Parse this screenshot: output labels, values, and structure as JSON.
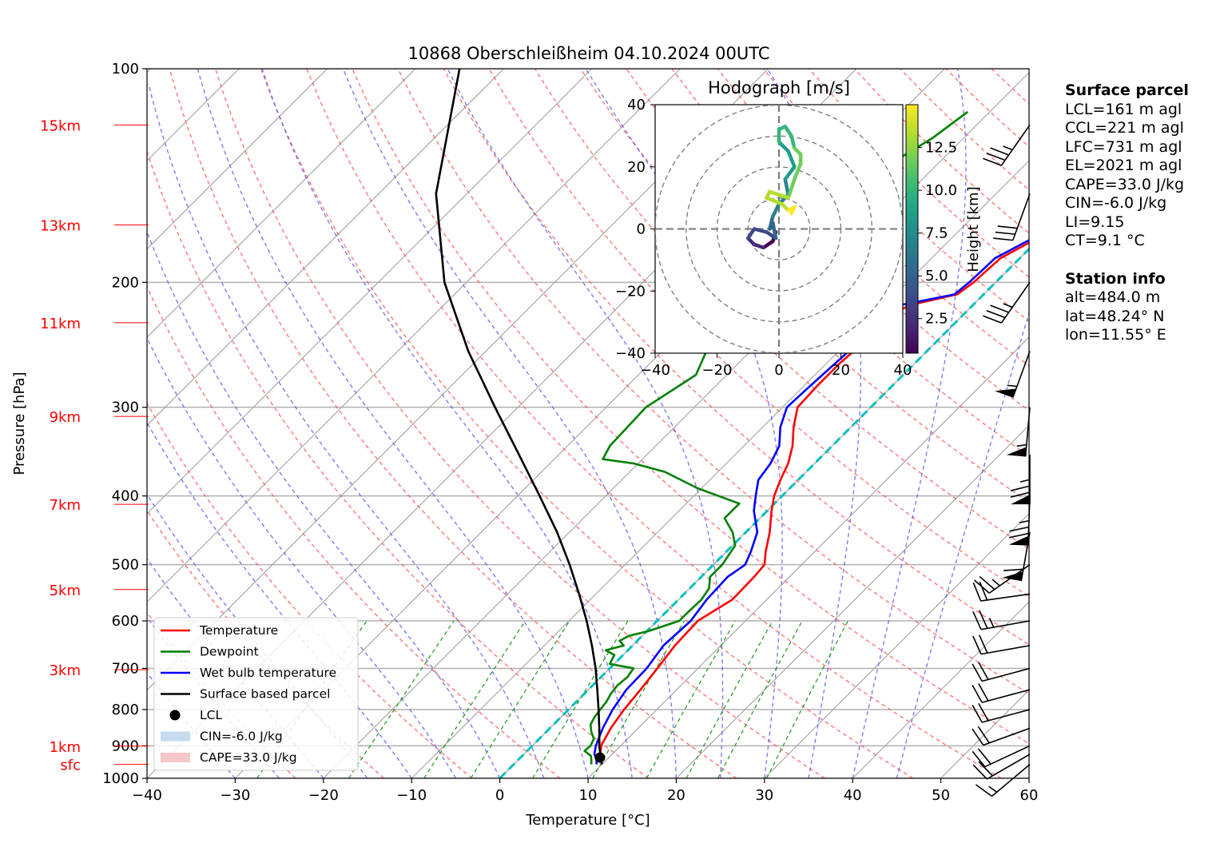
{
  "chart_data": {
    "type": "line",
    "title": "10868 Oberschleißheim 04.10.2024 00UTC",
    "xlabel": "Temperature [°C]",
    "ylabel": "Pressure [hPa]",
    "xlim": [
      -40,
      60
    ],
    "ylim": [
      1000,
      100
    ],
    "y_scale": "log",
    "x_ticks": [
      "−40",
      "−30",
      "−20",
      "−10",
      "0",
      "10",
      "20",
      "30",
      "40",
      "50",
      "60"
    ],
    "y_ticks": [
      {
        "p": 1000,
        "label": "1000"
      },
      {
        "p": 900,
        "label": "900"
      },
      {
        "p": 800,
        "label": "800"
      },
      {
        "p": 700,
        "label": "700"
      },
      {
        "p": 600,
        "label": "600"
      },
      {
        "p": 500,
        "label": "500"
      },
      {
        "p": 400,
        "label": "400"
      },
      {
        "p": 300,
        "label": "300"
      },
      {
        "p": 200,
        "label": "200"
      },
      {
        "p": 100,
        "label": "100"
      }
    ],
    "height_labels": [
      {
        "p": 956,
        "label": "sfc"
      },
      {
        "p": 901,
        "label": "1km"
      },
      {
        "p": 703,
        "label": "3km"
      },
      {
        "p": 542,
        "label": "5km"
      },
      {
        "p": 411,
        "label": "7km"
      },
      {
        "p": 309,
        "label": "9km"
      },
      {
        "p": 228,
        "label": "11km"
      },
      {
        "p": 166,
        "label": "13km"
      },
      {
        "p": 120,
        "label": "15km"
      }
    ],
    "legend_position": "lower-left",
    "legend": [
      {
        "label": "Temperature",
        "color": "#ff0000",
        "kind": "line"
      },
      {
        "label": "Dewpoint",
        "color": "#008000",
        "kind": "line"
      },
      {
        "label": "Wet bulb temperature",
        "color": "#0000ff",
        "kind": "line"
      },
      {
        "label": "Surface based parcel",
        "color": "#000000",
        "kind": "line"
      },
      {
        "label": "LCL",
        "color": "#000000",
        "kind": "dot"
      },
      {
        "label": "CIN=-6.0 J/kg",
        "color": "#c6dbef",
        "kind": "patch"
      },
      {
        "label": "CAPE=33.0 J/kg",
        "color": "#f4c7c9",
        "kind": "patch"
      }
    ],
    "series": [
      {
        "name": "Temperature",
        "color": "#ff0000",
        "points": [
          [
            956,
            10.0
          ],
          [
            940,
            9.3
          ],
          [
            925,
            8.7
          ],
          [
            900,
            7.8
          ],
          [
            850,
            6.9
          ],
          [
            800,
            6.3
          ],
          [
            750,
            5.9
          ],
          [
            700,
            5.4
          ],
          [
            650,
            4.8
          ],
          [
            600,
            4.6
          ],
          [
            560,
            6.1
          ],
          [
            520,
            6.0
          ],
          [
            500,
            5.8
          ],
          [
            480,
            4.5
          ],
          [
            450,
            2.7
          ],
          [
            420,
            0.5
          ],
          [
            400,
            -0.9
          ],
          [
            380,
            -2.0
          ],
          [
            360,
            -3.0
          ],
          [
            340,
            -4.5
          ],
          [
            320,
            -6.5
          ],
          [
            300,
            -8.3
          ],
          [
            280,
            -8.5
          ],
          [
            260,
            -8.5
          ],
          [
            240,
            -8.1
          ],
          [
            225,
            -8.8
          ],
          [
            215,
            -7.0
          ],
          [
            208,
            -3.0
          ],
          [
            200,
            -2.5
          ],
          [
            185,
            -2.2
          ],
          [
            170,
            0.3
          ],
          [
            160,
            1.8
          ],
          [
            150,
            2.5
          ],
          [
            140,
            3.7
          ],
          [
            130,
            5.5
          ],
          [
            122,
            5.7
          ],
          [
            115,
            6.0
          ]
        ]
      },
      {
        "name": "Dewpoint",
        "color": "#008000",
        "points": [
          [
            956,
            8.8
          ],
          [
            945,
            8.4
          ],
          [
            930,
            7.8
          ],
          [
            915,
            6.5
          ],
          [
            900,
            6.6
          ],
          [
            880,
            6.2
          ],
          [
            860,
            5.1
          ],
          [
            840,
            4.2
          ],
          [
            820,
            3.8
          ],
          [
            800,
            3.6
          ],
          [
            780,
            3.4
          ],
          [
            760,
            3.0
          ],
          [
            740,
            2.8
          ],
          [
            720,
            3.0
          ],
          [
            700,
            2.7
          ],
          [
            690,
            -0.5
          ],
          [
            670,
            -1.0
          ],
          [
            660,
            -2.5
          ],
          [
            650,
            -1.0
          ],
          [
            640,
            -2.0
          ],
          [
            630,
            -1.5
          ],
          [
            620,
            0.2
          ],
          [
            600,
            2.5
          ],
          [
            585,
            2.5
          ],
          [
            560,
            2.6
          ],
          [
            540,
            2.2
          ],
          [
            520,
            1.0
          ],
          [
            500,
            1.0
          ],
          [
            470,
            0.3
          ],
          [
            450,
            -1.5
          ],
          [
            430,
            -4.0
          ],
          [
            410,
            -4.0
          ],
          [
            390,
            -10.5
          ],
          [
            370,
            -16.0
          ],
          [
            360,
            -20.5
          ],
          [
            355,
            -24.5
          ],
          [
            340,
            -25.2
          ],
          [
            300,
            -25.5
          ],
          [
            270,
            -23.5
          ],
          [
            250,
            -25.0
          ],
          [
            230,
            -24.0
          ],
          [
            215,
            -24.5
          ],
          [
            205,
            -27.5
          ],
          [
            200,
            -32.0
          ],
          [
            195,
            -31.0
          ],
          [
            180,
            -30.3
          ],
          [
            160,
            -28.0
          ],
          [
            140,
            -26.0
          ],
          [
            125,
            -23.5
          ],
          [
            115,
            -22.5
          ]
        ]
      },
      {
        "name": "Wet bulb temperature",
        "color": "#0000ff",
        "points": [
          [
            956,
            9.4
          ],
          [
            940,
            8.8
          ],
          [
            925,
            8.0
          ],
          [
            900,
            7.2
          ],
          [
            850,
            6.0
          ],
          [
            800,
            5.0
          ],
          [
            750,
            4.3
          ],
          [
            700,
            4.2
          ],
          [
            650,
            3.5
          ],
          [
            600,
            3.8
          ],
          [
            560,
            3.2
          ],
          [
            520,
            3.0
          ],
          [
            500,
            3.6
          ],
          [
            480,
            2.8
          ],
          [
            450,
            1.3
          ],
          [
            420,
            -1.5
          ],
          [
            400,
            -3.0
          ],
          [
            380,
            -4.5
          ],
          [
            360,
            -5.0
          ],
          [
            340,
            -6.0
          ],
          [
            320,
            -8.0
          ],
          [
            300,
            -9.5
          ],
          [
            280,
            -9.3
          ],
          [
            260,
            -9.0
          ],
          [
            240,
            -8.7
          ],
          [
            225,
            -9.4
          ],
          [
            215,
            -8.0
          ],
          [
            208,
            -3.3
          ],
          [
            200,
            -3.0
          ],
          [
            185,
            -2.8
          ],
          [
            170,
            -0.2
          ],
          [
            160,
            1.3
          ],
          [
            150,
            2.0
          ],
          [
            140,
            3.2
          ],
          [
            130,
            5.0
          ],
          [
            122,
            5.2
          ],
          [
            115,
            5.5
          ]
        ]
      },
      {
        "name": "Surface based parcel",
        "color": "#000000",
        "points": [
          [
            956,
            10.0
          ],
          [
            935,
            9.1
          ],
          [
            900,
            7.6
          ],
          [
            850,
            5.6
          ],
          [
            800,
            3.4
          ],
          [
            750,
            1.0
          ],
          [
            700,
            -1.6
          ],
          [
            650,
            -4.6
          ],
          [
            600,
            -8.0
          ],
          [
            550,
            -11.9
          ],
          [
            500,
            -16.3
          ],
          [
            450,
            -21.4
          ],
          [
            400,
            -27.5
          ],
          [
            350,
            -34.5
          ],
          [
            300,
            -42.6
          ],
          [
            250,
            -52.0
          ],
          [
            200,
            -62.5
          ],
          [
            150,
            -73.5
          ],
          [
            100,
            -85.0
          ]
        ]
      }
    ],
    "lcl": {
      "p": 935,
      "t": 9.0
    },
    "freezing_level_line": {
      "color": "#00c0c0",
      "points": [
        [
          1000,
          0
        ],
        [
          100,
          0
        ]
      ]
    },
    "wind_barbs": [
      {
        "p": 956,
        "speed_kt": 15,
        "dir_deg": 230
      },
      {
        "p": 925,
        "speed_kt": 20,
        "dir_deg": 240
      },
      {
        "p": 900,
        "speed_kt": 20,
        "dir_deg": 245
      },
      {
        "p": 850,
        "speed_kt": 20,
        "dir_deg": 250
      },
      {
        "p": 800,
        "speed_kt": 20,
        "dir_deg": 255
      },
      {
        "p": 750,
        "speed_kt": 20,
        "dir_deg": 255
      },
      {
        "p": 700,
        "speed_kt": 20,
        "dir_deg": 255
      },
      {
        "p": 650,
        "speed_kt": 20,
        "dir_deg": 260
      },
      {
        "p": 600,
        "speed_kt": 25,
        "dir_deg": 260
      },
      {
        "p": 550,
        "speed_kt": 20,
        "dir_deg": 262
      },
      {
        "p": 500,
        "speed_kt": 25,
        "dir_deg": 235
      },
      {
        "p": 450,
        "speed_kt": 60,
        "dir_deg": 190
      },
      {
        "p": 400,
        "speed_kt": 75,
        "dir_deg": 182
      },
      {
        "p": 350,
        "speed_kt": 75,
        "dir_deg": 180
      },
      {
        "p": 300,
        "speed_kt": 55,
        "dir_deg": 185
      },
      {
        "p": 250,
        "speed_kt": 55,
        "dir_deg": 200
      },
      {
        "p": 200,
        "speed_kt": 35,
        "dir_deg": 215
      },
      {
        "p": 150,
        "speed_kt": 30,
        "dir_deg": 200
      },
      {
        "p": 120,
        "speed_kt": 35,
        "dir_deg": 215
      }
    ],
    "hodograph": {
      "title": "Hodograph [m/s]",
      "xlim": [
        -40,
        40
      ],
      "ylim": [
        -40,
        40
      ],
      "x_ticks": [
        "−40",
        "−20",
        "0",
        "20",
        "40"
      ],
      "y_ticks": [
        "40",
        "20",
        "0",
        "−20",
        "−40"
      ],
      "rings_ms": [
        10,
        20,
        30,
        40
      ],
      "colorbar_label": "Height [km]",
      "colorbar_ticks": [
        "2.5",
        "5.0",
        "7.5",
        "10.0",
        "12.5"
      ],
      "colorbar_range_km": [
        0.48,
        15.0
      ],
      "points": [
        [
          -1,
          -1,
          0.48
        ],
        [
          -2,
          -4,
          1.0
        ],
        [
          -5,
          -6,
          1.5
        ],
        [
          -8,
          -5,
          2.0
        ],
        [
          -10,
          -3,
          2.6
        ],
        [
          -8,
          0,
          3.2
        ],
        [
          -4,
          -1,
          3.8
        ],
        [
          -1,
          -3,
          4.4
        ],
        [
          -2,
          2,
          5.0
        ],
        [
          -3,
          0,
          5.6
        ],
        [
          -2,
          4,
          6.2
        ],
        [
          0,
          8,
          6.8
        ],
        [
          3,
          11,
          7.4
        ],
        [
          2,
          16,
          8.0
        ],
        [
          5,
          20,
          8.4
        ],
        [
          3,
          25,
          8.8
        ],
        [
          0,
          28,
          9.2
        ],
        [
          0,
          32,
          9.8
        ],
        [
          2,
          33,
          10.2
        ],
        [
          4,
          30,
          10.6
        ],
        [
          5,
          26,
          11.0
        ],
        [
          7,
          24,
          11.4
        ],
        [
          7,
          21,
          11.8
        ],
        [
          5,
          16,
          12.2
        ],
        [
          3,
          10,
          12.6
        ],
        [
          -3,
          12,
          13.0
        ],
        [
          -4,
          10,
          13.4
        ],
        [
          1,
          8,
          13.8
        ],
        [
          3,
          6,
          14.2
        ],
        [
          5,
          7,
          14.6
        ],
        [
          4,
          5,
          15.0
        ]
      ]
    }
  },
  "panel": {
    "surface_header": "Surface parcel",
    "lcl": "LCL=161 m agl",
    "ccl": "CCL=221 m agl",
    "lfc": "LFC=731 m agl",
    "el": "EL=2021 m agl",
    "cape": "CAPE=33.0 J/kg",
    "cin": "CIN=-6.0 J/kg",
    "li": "LI=9.15",
    "ct": "CT=9.1 °C",
    "station_header": "Station info",
    "alt": "alt=484.0 m",
    "lat": "lat=48.24° N",
    "lon": "lon=11.55° E"
  }
}
